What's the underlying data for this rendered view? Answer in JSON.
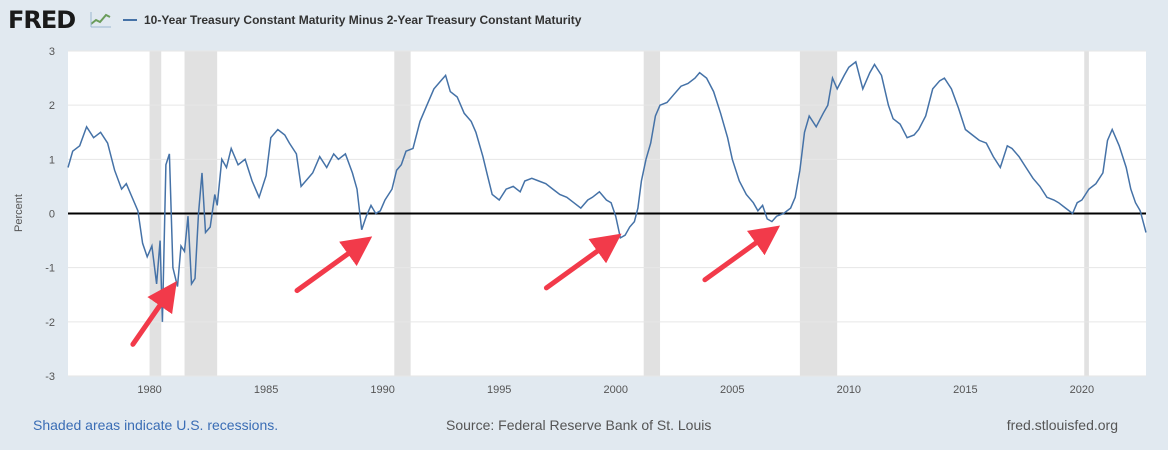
{
  "header": {
    "logo_text": "FRED",
    "logo_icon": "trend-line-icon"
  },
  "footer": {
    "left": "Shaded areas indicate U.S. recessions.",
    "center": "Source: Federal Reserve Bank of St. Louis",
    "right": "fred.stlouisfed.org"
  },
  "colors": {
    "series": "#4572a7",
    "recession": "#e1e1e1",
    "zero_line": "#000000",
    "annotation_arrows": "#f23a4a",
    "background": "#e1e9f0",
    "plot_background": "#ffffff"
  },
  "chart_data": {
    "type": "line",
    "title": "",
    "xlabel": "",
    "ylabel": "Percent",
    "xlim": [
      1976.5,
      2022.75
    ],
    "ylim": [
      -3,
      3
    ],
    "y_ticks": [
      3,
      2,
      1,
      0,
      -1,
      -2,
      -3
    ],
    "x_ticks": [
      1980,
      1985,
      1990,
      1995,
      2000,
      2005,
      2010,
      2015,
      2020
    ],
    "grid": "horizontal",
    "legend": "top-left",
    "zero_line": true,
    "recessions": [
      [
        1980.0,
        1980.5
      ],
      [
        1981.5,
        1982.9
      ],
      [
        1990.5,
        1991.2
      ],
      [
        2001.2,
        2001.9
      ],
      [
        2007.9,
        2009.5
      ],
      [
        2020.1,
        2020.3
      ]
    ],
    "annotations": [
      {
        "type": "arrow",
        "x": 1981.0,
        "y": -1.4
      },
      {
        "type": "arrow",
        "x": 1989.2,
        "y": -0.5
      },
      {
        "type": "arrow",
        "x": 1999.9,
        "y": -0.45
      },
      {
        "type": "arrow",
        "x": 2006.7,
        "y": -0.3
      }
    ],
    "series": [
      {
        "name": "10-Year Treasury Constant Maturity Minus 2-Year Treasury Constant Maturity",
        "points": [
          [
            1976.5,
            0.85
          ],
          [
            1976.7,
            1.15
          ],
          [
            1977.0,
            1.25
          ],
          [
            1977.3,
            1.6
          ],
          [
            1977.6,
            1.4
          ],
          [
            1977.9,
            1.5
          ],
          [
            1978.2,
            1.3
          ],
          [
            1978.5,
            0.8
          ],
          [
            1978.8,
            0.45
          ],
          [
            1979.0,
            0.55
          ],
          [
            1979.2,
            0.35
          ],
          [
            1979.5,
            0.05
          ],
          [
            1979.7,
            -0.55
          ],
          [
            1979.9,
            -0.8
          ],
          [
            1980.1,
            -0.6
          ],
          [
            1980.3,
            -1.3
          ],
          [
            1980.45,
            -0.5
          ],
          [
            1980.55,
            -2.0
          ],
          [
            1980.7,
            0.9
          ],
          [
            1980.85,
            1.1
          ],
          [
            1981.0,
            -1.0
          ],
          [
            1981.2,
            -1.35
          ],
          [
            1981.35,
            -0.6
          ],
          [
            1981.5,
            -0.7
          ],
          [
            1981.65,
            -0.05
          ],
          [
            1981.8,
            -1.3
          ],
          [
            1981.95,
            -1.2
          ],
          [
            1982.1,
            0.0
          ],
          [
            1982.25,
            0.75
          ],
          [
            1982.4,
            -0.35
          ],
          [
            1982.6,
            -0.25
          ],
          [
            1982.8,
            0.35
          ],
          [
            1982.9,
            0.15
          ],
          [
            1983.1,
            1.0
          ],
          [
            1983.3,
            0.85
          ],
          [
            1983.5,
            1.2
          ],
          [
            1983.8,
            0.9
          ],
          [
            1984.1,
            1.0
          ],
          [
            1984.4,
            0.6
          ],
          [
            1984.7,
            0.3
          ],
          [
            1985.0,
            0.7
          ],
          [
            1985.2,
            1.4
          ],
          [
            1985.5,
            1.55
          ],
          [
            1985.8,
            1.45
          ],
          [
            1986.0,
            1.3
          ],
          [
            1986.3,
            1.1
          ],
          [
            1986.5,
            0.5
          ],
          [
            1986.8,
            0.65
          ],
          [
            1987.0,
            0.75
          ],
          [
            1987.3,
            1.05
          ],
          [
            1987.6,
            0.85
          ],
          [
            1987.9,
            1.1
          ],
          [
            1988.1,
            1.0
          ],
          [
            1988.4,
            1.1
          ],
          [
            1988.7,
            0.75
          ],
          [
            1988.9,
            0.45
          ],
          [
            1989.1,
            -0.3
          ],
          [
            1989.3,
            -0.05
          ],
          [
            1989.5,
            0.15
          ],
          [
            1989.7,
            0.0
          ],
          [
            1989.9,
            0.05
          ],
          [
            1990.1,
            0.25
          ],
          [
            1990.4,
            0.45
          ],
          [
            1990.6,
            0.8
          ],
          [
            1990.8,
            0.9
          ],
          [
            1991.0,
            1.15
          ],
          [
            1991.3,
            1.2
          ],
          [
            1991.6,
            1.7
          ],
          [
            1991.9,
            2.0
          ],
          [
            1992.2,
            2.3
          ],
          [
            1992.5,
            2.45
          ],
          [
            1992.7,
            2.55
          ],
          [
            1992.9,
            2.25
          ],
          [
            1993.2,
            2.15
          ],
          [
            1993.5,
            1.85
          ],
          [
            1993.8,
            1.7
          ],
          [
            1994.0,
            1.5
          ],
          [
            1994.3,
            1.05
          ],
          [
            1994.5,
            0.7
          ],
          [
            1994.7,
            0.35
          ],
          [
            1995.0,
            0.25
          ],
          [
            1995.3,
            0.45
          ],
          [
            1995.6,
            0.5
          ],
          [
            1995.9,
            0.4
          ],
          [
            1996.1,
            0.6
          ],
          [
            1996.4,
            0.65
          ],
          [
            1996.7,
            0.6
          ],
          [
            1997.0,
            0.55
          ],
          [
            1997.3,
            0.45
          ],
          [
            1997.6,
            0.35
          ],
          [
            1997.9,
            0.3
          ],
          [
            1998.2,
            0.2
          ],
          [
            1998.5,
            0.1
          ],
          [
            1998.8,
            0.25
          ],
          [
            1999.0,
            0.3
          ],
          [
            1999.3,
            0.4
          ],
          [
            1999.6,
            0.25
          ],
          [
            1999.8,
            0.2
          ],
          [
            2000.0,
            -0.05
          ],
          [
            2000.2,
            -0.45
          ],
          [
            2000.4,
            -0.4
          ],
          [
            2000.6,
            -0.25
          ],
          [
            2000.8,
            -0.15
          ],
          [
            2000.95,
            0.1
          ],
          [
            2001.1,
            0.6
          ],
          [
            2001.3,
            1.0
          ],
          [
            2001.5,
            1.3
          ],
          [
            2001.7,
            1.8
          ],
          [
            2001.9,
            2.0
          ],
          [
            2002.2,
            2.05
          ],
          [
            2002.5,
            2.2
          ],
          [
            2002.8,
            2.35
          ],
          [
            2003.1,
            2.4
          ],
          [
            2003.4,
            2.5
          ],
          [
            2003.6,
            2.6
          ],
          [
            2003.9,
            2.5
          ],
          [
            2004.2,
            2.25
          ],
          [
            2004.5,
            1.85
          ],
          [
            2004.8,
            1.4
          ],
          [
            2005.0,
            1.0
          ],
          [
            2005.3,
            0.6
          ],
          [
            2005.6,
            0.35
          ],
          [
            2005.9,
            0.2
          ],
          [
            2006.1,
            0.05
          ],
          [
            2006.3,
            0.15
          ],
          [
            2006.5,
            -0.1
          ],
          [
            2006.7,
            -0.15
          ],
          [
            2006.9,
            -0.05
          ],
          [
            2007.2,
            0.0
          ],
          [
            2007.5,
            0.1
          ],
          [
            2007.7,
            0.3
          ],
          [
            2007.9,
            0.8
          ],
          [
            2008.1,
            1.5
          ],
          [
            2008.3,
            1.8
          ],
          [
            2008.6,
            1.6
          ],
          [
            2008.9,
            1.85
          ],
          [
            2009.1,
            2.0
          ],
          [
            2009.3,
            2.5
          ],
          [
            2009.5,
            2.3
          ],
          [
            2009.8,
            2.55
          ],
          [
            2010.0,
            2.7
          ],
          [
            2010.3,
            2.8
          ],
          [
            2010.6,
            2.3
          ],
          [
            2010.9,
            2.6
          ],
          [
            2011.1,
            2.75
          ],
          [
            2011.4,
            2.55
          ],
          [
            2011.7,
            2.0
          ],
          [
            2011.9,
            1.75
          ],
          [
            2012.2,
            1.65
          ],
          [
            2012.5,
            1.4
          ],
          [
            2012.8,
            1.45
          ],
          [
            2013.0,
            1.55
          ],
          [
            2013.3,
            1.8
          ],
          [
            2013.6,
            2.3
          ],
          [
            2013.9,
            2.45
          ],
          [
            2014.1,
            2.5
          ],
          [
            2014.4,
            2.3
          ],
          [
            2014.7,
            1.95
          ],
          [
            2015.0,
            1.55
          ],
          [
            2015.3,
            1.45
          ],
          [
            2015.6,
            1.35
          ],
          [
            2015.9,
            1.3
          ],
          [
            2016.2,
            1.05
          ],
          [
            2016.5,
            0.85
          ],
          [
            2016.8,
            1.25
          ],
          [
            2017.0,
            1.2
          ],
          [
            2017.3,
            1.05
          ],
          [
            2017.6,
            0.85
          ],
          [
            2017.9,
            0.65
          ],
          [
            2018.2,
            0.5
          ],
          [
            2018.5,
            0.3
          ],
          [
            2018.8,
            0.25
          ],
          [
            2019.0,
            0.2
          ],
          [
            2019.3,
            0.1
          ],
          [
            2019.6,
            0.0
          ],
          [
            2019.8,
            0.2
          ],
          [
            2020.0,
            0.25
          ],
          [
            2020.3,
            0.45
          ],
          [
            2020.6,
            0.55
          ],
          [
            2020.9,
            0.75
          ],
          [
            2021.1,
            1.35
          ],
          [
            2021.3,
            1.55
          ],
          [
            2021.6,
            1.25
          ],
          [
            2021.9,
            0.85
          ],
          [
            2022.1,
            0.45
          ],
          [
            2022.3,
            0.2
          ],
          [
            2022.5,
            0.05
          ],
          [
            2022.75,
            -0.35
          ]
        ]
      }
    ]
  }
}
